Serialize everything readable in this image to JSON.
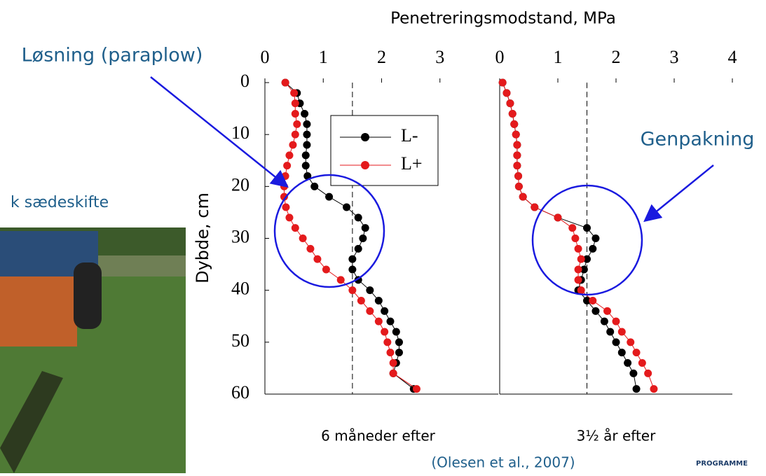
{
  "slide": {
    "annotations": [
      "Løsning (paraplow)",
      "Genpakning",
      "k sædeskifte",
      "(Olesen et al., 2007)",
      "PROGRAMME"
    ]
  },
  "chart_data": [
    {
      "type": "line",
      "xlabel": "Penetreringsmodstand, MPa",
      "ylabel": "Dybde, cm",
      "caption": "6 måneder efter",
      "xlim": [
        0,
        4
      ],
      "xticks": [
        0,
        1,
        2,
        3
      ],
      "ylim": [
        0,
        60
      ],
      "yticks": [
        0,
        10,
        20,
        30,
        40,
        50,
        60
      ],
      "ref_line": 1.5,
      "depth": [
        0,
        2,
        4,
        6,
        8,
        10,
        12,
        14,
        16,
        18,
        20,
        22,
        24,
        26,
        28,
        30,
        32,
        34,
        36,
        38,
        40,
        42,
        44,
        46,
        48,
        50,
        52,
        54,
        56,
        59
      ],
      "series": [
        {
          "name": "L-",
          "color": "#000000",
          "values": [
            0.35,
            0.55,
            0.6,
            0.68,
            0.72,
            0.72,
            0.72,
            0.7,
            0.7,
            0.73,
            0.85,
            1.1,
            1.4,
            1.6,
            1.72,
            1.68,
            1.6,
            1.5,
            1.5,
            1.6,
            1.8,
            1.95,
            2.05,
            2.15,
            2.25,
            2.3,
            2.3,
            2.25,
            2.2,
            2.55
          ]
        },
        {
          "name": "L+",
          "color": "#e41a1c",
          "values": [
            0.35,
            0.5,
            0.52,
            0.52,
            0.55,
            0.52,
            0.48,
            0.42,
            0.38,
            0.35,
            0.33,
            0.33,
            0.36,
            0.42,
            0.52,
            0.65,
            0.78,
            0.9,
            1.05,
            1.3,
            1.5,
            1.65,
            1.8,
            1.95,
            2.05,
            2.1,
            2.15,
            2.2,
            2.2,
            2.6
          ]
        }
      ]
    },
    {
      "type": "line",
      "caption": "3½ år efter",
      "xlim": [
        0,
        4
      ],
      "xticks": [
        0,
        1,
        2,
        3,
        4
      ],
      "ylim": [
        0,
        60
      ],
      "ref_line": 1.5,
      "depth": [
        0,
        2,
        4,
        6,
        8,
        10,
        12,
        14,
        16,
        18,
        20,
        22,
        24,
        26,
        28,
        30,
        32,
        34,
        36,
        38,
        40,
        42,
        44,
        46,
        48,
        50,
        52,
        54,
        56,
        59
      ],
      "series": [
        {
          "color": "#000000",
          "values": [
            0.05,
            0.12,
            0.18,
            0.22,
            0.25,
            0.28,
            0.3,
            0.3,
            0.3,
            0.32,
            0.33,
            0.4,
            0.6,
            1.0,
            1.5,
            1.65,
            1.6,
            1.5,
            1.45,
            1.4,
            1.35,
            1.5,
            1.65,
            1.8,
            1.9,
            2.0,
            2.1,
            2.2,
            2.3,
            2.35
          ]
        },
        {
          "color": "#e41a1c",
          "values": [
            0.05,
            0.12,
            0.18,
            0.22,
            0.25,
            0.28,
            0.3,
            0.3,
            0.3,
            0.32,
            0.33,
            0.4,
            0.6,
            1.0,
            1.25,
            1.3,
            1.35,
            1.4,
            1.35,
            1.35,
            1.4,
            1.6,
            1.85,
            2.0,
            2.1,
            2.25,
            2.35,
            2.45,
            2.55,
            2.65
          ]
        }
      ]
    }
  ]
}
